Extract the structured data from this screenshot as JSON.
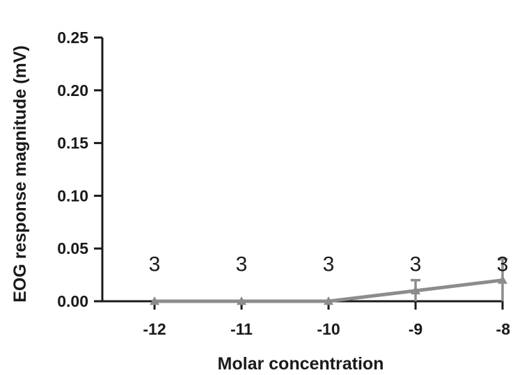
{
  "chart_data": {
    "type": "line",
    "xlabel": "Molar concentration",
    "ylabel": "EOG response magnitude (mV)",
    "x": [
      -12,
      -11,
      -10,
      -9,
      -8
    ],
    "x_tick_labels": [
      "-12",
      "-11",
      "-10",
      "-9",
      "-8"
    ],
    "xlim": [
      -12.6,
      -8
    ],
    "ylim": [
      0,
      0.25
    ],
    "y_ticks": [
      0.0,
      0.05,
      0.1,
      0.15,
      0.2,
      0.25
    ],
    "y_tick_labels": [
      "0.00",
      "0.05",
      "0.10",
      "0.15",
      "0.20",
      "0.25"
    ],
    "series": [
      {
        "values": [
          0.0,
          0.0,
          0.0,
          0.01,
          0.02
        ],
        "error": [
          0.0,
          0.0,
          0.0,
          0.01,
          0.02
        ],
        "marker": "triangle",
        "color": "#8c8c8c"
      }
    ],
    "sample_sizes": [
      "3",
      "3",
      "3",
      "3",
      "3"
    ],
    "sample_size_y": 0.036,
    "axis_color": "#1a1a1a",
    "grid": false,
    "legend": "none"
  }
}
